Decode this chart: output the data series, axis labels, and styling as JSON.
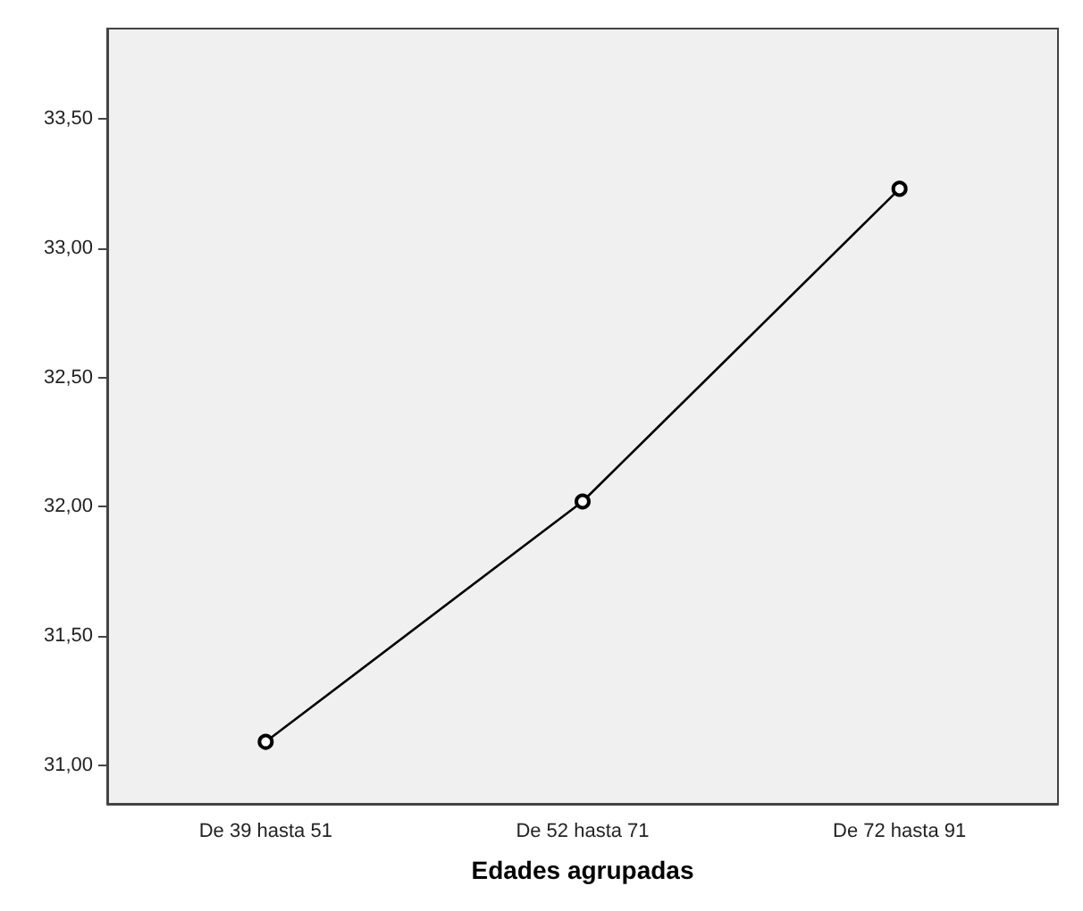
{
  "chart_data": {
    "type": "line",
    "xlabel": "Edades agrupadas",
    "categories": [
      "De 39 hasta 51",
      "De 52 hasta 71",
      "De 72 hasta 91"
    ],
    "series": [
      {
        "color": "#000000",
        "values": [
          31.09,
          32.02,
          33.23
        ]
      }
    ],
    "ylim": [
      30.85,
      33.85
    ],
    "yticks": [
      {
        "value": 31,
        "label": "31,00"
      },
      {
        "value": 31.5,
        "label": "31,50"
      },
      {
        "value": 32,
        "label": "32,00"
      },
      {
        "value": 32.5,
        "label": "32,50"
      },
      {
        "value": 33,
        "label": "33,00"
      },
      {
        "value": 33.5,
        "label": "33,50"
      }
    ],
    "marker": "circle",
    "line_style": "solid",
    "grid": false
  }
}
